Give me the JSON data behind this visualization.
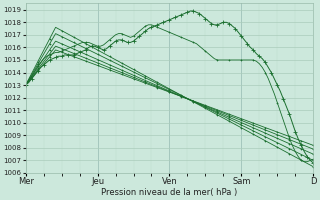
{
  "bg_color": "#cce8dc",
  "grid_major_color": "#aaccbb",
  "grid_minor_color": "#bbddcc",
  "line_color": "#1a6e2e",
  "ylabel": "Pression niveau de la mer( hPa )",
  "ylim": [
    1006,
    1019.5
  ],
  "yticks": [
    1006,
    1007,
    1008,
    1009,
    1010,
    1011,
    1012,
    1013,
    1014,
    1015,
    1016,
    1017,
    1018,
    1019
  ],
  "xtick_labels": [
    "Mer",
    "Jeu",
    "Ven",
    "Sam",
    "D"
  ],
  "xtick_positions": [
    0,
    24,
    48,
    72,
    96
  ],
  "total_hours": 97,
  "n_straight": 5,
  "straight_lines": [
    {
      "x0": 0,
      "y0": 1013.0,
      "xpeak": 10,
      "ypeak": 1015.8,
      "xend": 96,
      "yend": 1008.2
    },
    {
      "x0": 0,
      "y0": 1013.0,
      "xpeak": 10,
      "ypeak": 1016.1,
      "xend": 96,
      "yend": 1007.9
    },
    {
      "x0": 0,
      "y0": 1013.0,
      "xpeak": 10,
      "ypeak": 1016.5,
      "xend": 96,
      "yend": 1007.5
    },
    {
      "x0": 0,
      "y0": 1013.0,
      "xpeak": 10,
      "ypeak": 1017.1,
      "xend": 96,
      "yend": 1007.0
    },
    {
      "x0": 0,
      "y0": 1013.0,
      "xpeak": 10,
      "ypeak": 1017.6,
      "xend": 96,
      "yend": 1006.5
    }
  ],
  "detailed_line": [
    1013.0,
    1013.2,
    1013.5,
    1013.8,
    1014.1,
    1014.4,
    1014.6,
    1014.8,
    1015.0,
    1015.1,
    1015.2,
    1015.3,
    1015.3,
    1015.4,
    1015.4,
    1015.4,
    1015.4,
    1015.5,
    1015.6,
    1015.7,
    1015.8,
    1016.0,
    1016.1,
    1016.1,
    1016.0,
    1015.9,
    1015.8,
    1015.9,
    1016.1,
    1016.3,
    1016.5,
    1016.6,
    1016.6,
    1016.5,
    1016.4,
    1016.4,
    1016.5,
    1016.7,
    1016.9,
    1017.1,
    1017.3,
    1017.5,
    1017.6,
    1017.7,
    1017.8,
    1017.9,
    1018.0,
    1018.1,
    1018.2,
    1018.3,
    1018.4,
    1018.5,
    1018.6,
    1018.7,
    1018.8,
    1018.9,
    1018.9,
    1018.8,
    1018.7,
    1018.5,
    1018.3,
    1018.1,
    1017.9,
    1017.8,
    1017.8,
    1017.9,
    1018.0,
    1018.0,
    1017.9,
    1017.7,
    1017.5,
    1017.2,
    1016.9,
    1016.6,
    1016.3,
    1016.0,
    1015.8,
    1015.5,
    1015.3,
    1015.1,
    1014.8,
    1014.4,
    1014.0,
    1013.5,
    1013.0,
    1012.5,
    1011.9,
    1011.3,
    1010.7,
    1010.0,
    1009.3,
    1008.7,
    1008.2,
    1007.7,
    1007.3,
    1007.0,
    1006.8
  ],
  "second_detailed_line": [
    1013.0,
    1013.3,
    1013.7,
    1014.1,
    1014.5,
    1014.8,
    1015.1,
    1015.3,
    1015.4,
    1015.5,
    1015.6,
    1015.6,
    1015.7,
    1015.8,
    1015.9,
    1016.0,
    1016.1,
    1016.2,
    1016.3,
    1016.4,
    1016.4,
    1016.4,
    1016.3,
    1016.2,
    1016.1,
    1016.1,
    1016.2,
    1016.4,
    1016.6,
    1016.8,
    1017.0,
    1017.1,
    1017.1,
    1017.0,
    1016.9,
    1016.8,
    1016.9,
    1017.1,
    1017.3,
    1017.5,
    1017.7,
    1017.8,
    1017.8,
    1017.7,
    1017.6,
    1017.5,
    1017.4,
    1017.3,
    1017.2,
    1017.1,
    1017.0,
    1016.9,
    1016.8,
    1016.7,
    1016.6,
    1016.5,
    1016.4,
    1016.3,
    1016.1,
    1015.9,
    1015.7,
    1015.5,
    1015.3,
    1015.1,
    1015.0,
    1015.0,
    1015.0,
    1015.0,
    1015.0,
    1015.0,
    1015.0,
    1015.0,
    1015.0,
    1015.0,
    1015.0,
    1015.0,
    1015.0,
    1014.9,
    1014.7,
    1014.4,
    1014.0,
    1013.5,
    1012.9,
    1012.3,
    1011.6,
    1010.9,
    1010.2,
    1009.5,
    1008.8,
    1008.2,
    1007.7,
    1007.3,
    1007.0,
    1006.9,
    1006.9,
    1007.0,
    1007.1
  ]
}
